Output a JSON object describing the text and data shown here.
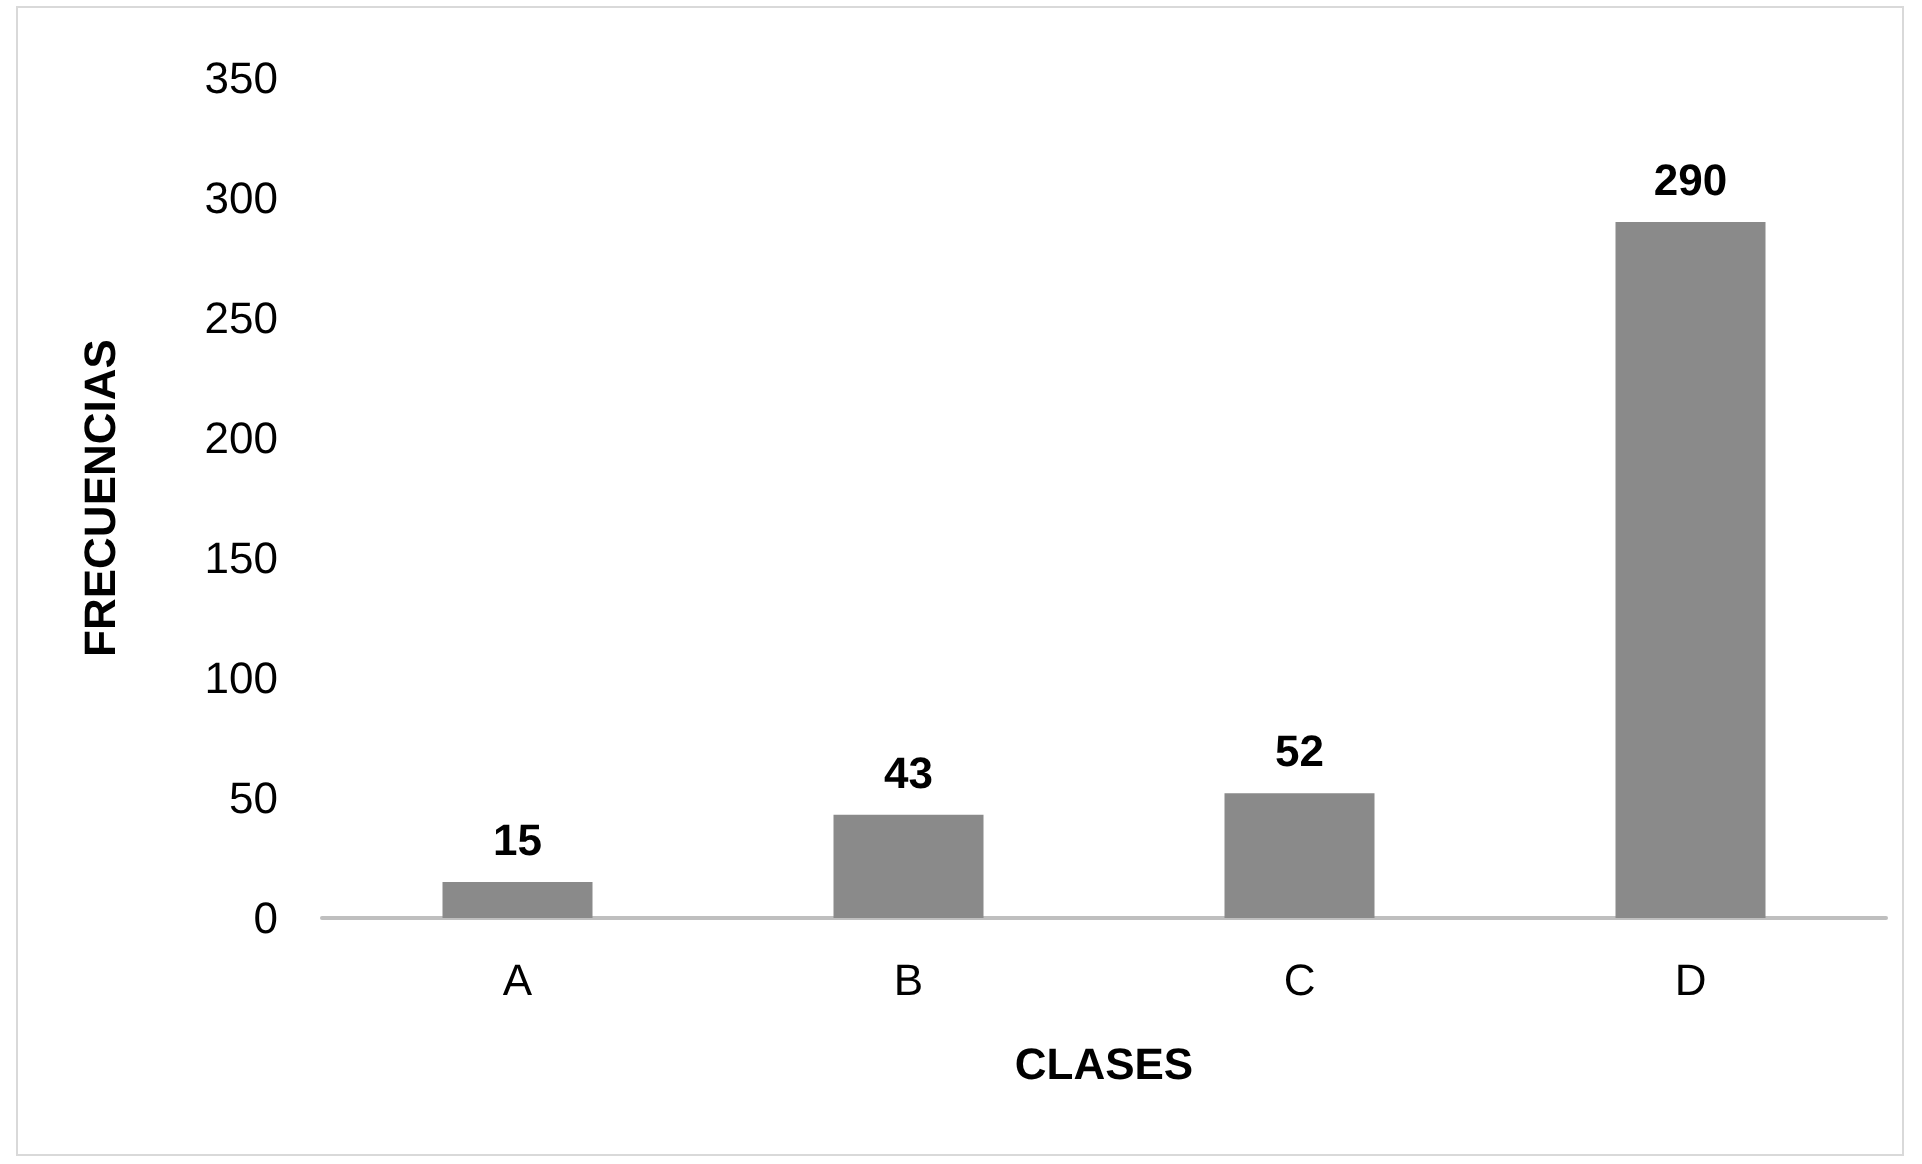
{
  "chart_data": {
    "type": "bar",
    "xlabel": "CLASES",
    "ylabel": "FRECUENCIAS",
    "categories": [
      "A",
      "B",
      "C",
      "D"
    ],
    "values": [
      15,
      43,
      52,
      290
    ],
    "color": "#8a8a8a",
    "ylim": [
      0,
      350
    ],
    "yticks": [
      0,
      50,
      100,
      150,
      200,
      250,
      300,
      350
    ],
    "grid": false,
    "data_labels": true
  }
}
